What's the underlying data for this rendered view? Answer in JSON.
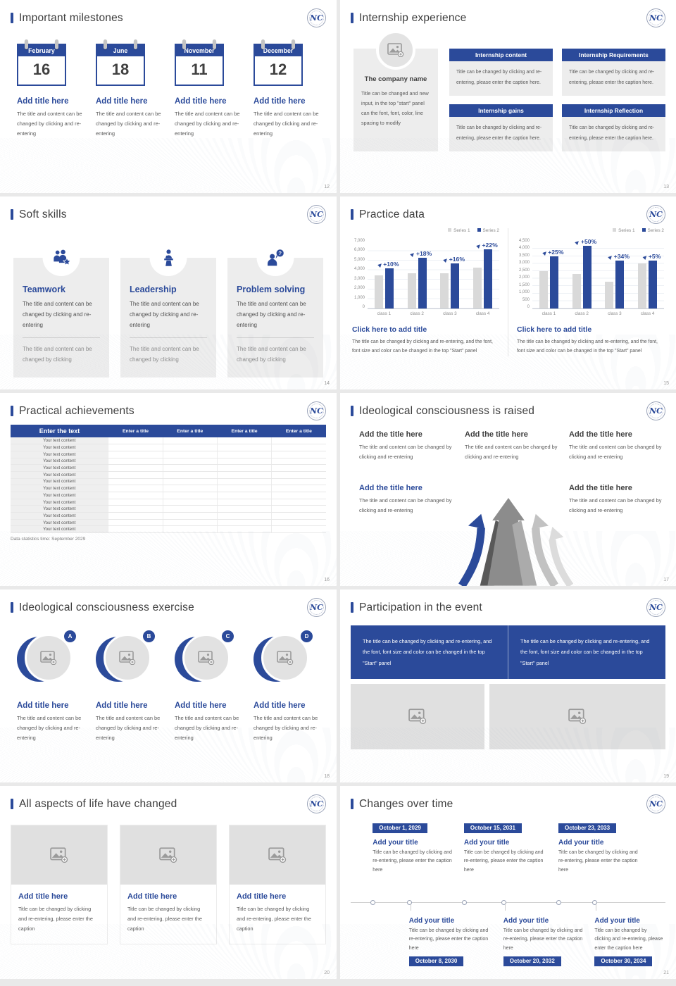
{
  "logo": {
    "monogram": "NC"
  },
  "glyphs": {
    "question_mark": "?"
  },
  "colors": {
    "primary": "#2b4a9a",
    "series1_gray": "#d9d9d9",
    "panel_gray": "#ededed"
  },
  "slides": [
    {
      "title": "Important milestones",
      "page": "12",
      "items": [
        {
          "month": "February",
          "day": "16",
          "title": "Add title here",
          "caption": "The title and content can be changed by clicking and re-entering"
        },
        {
          "month": "June",
          "day": "18",
          "title": "Add title here",
          "caption": "The title and content can be changed by clicking and re-entering"
        },
        {
          "month": "November",
          "day": "11",
          "title": "Add title here",
          "caption": "The title and content can be changed by clicking and re-entering"
        },
        {
          "month": "December",
          "day": "12",
          "title": "Add title here",
          "caption": "The title and content can be changed by clicking and re-entering"
        }
      ]
    },
    {
      "title": "Internship experience",
      "page": "13",
      "company": {
        "name": "The company name",
        "caption": "Title can be changed and new input, in the top \"start\" panel can the font, font, color, line spacing to modify"
      },
      "panels": [
        {
          "title": "Internship content",
          "caption": "Title can be changed by clicking and re-entering, please enter the caption here."
        },
        {
          "title": "Internship Requirements",
          "caption": "Title can be changed by clicking and re-entering, please enter the caption here."
        },
        {
          "title": "Internship gains",
          "caption": "Title can be changed by clicking and re-entering, please enter the caption here."
        },
        {
          "title": "Internship Reflection",
          "caption": "Title can be changed by clicking and re-entering, please enter the caption here."
        }
      ]
    },
    {
      "title": "Soft skills",
      "page": "14",
      "cards": [
        {
          "icon": "teamwork-icon",
          "title": "Teamwork",
          "text1": "The title and content can be changed by clicking and re-entering",
          "text2": "The title and content can be changed by clicking"
        },
        {
          "icon": "leadership-icon",
          "title": "Leadership",
          "text1": "The title and content can be changed by clicking and re-entering",
          "text2": "The title and content can be changed by clicking"
        },
        {
          "icon": "problem-solving-icon",
          "title": "Problem solving",
          "text1": "The title and content can be changed by clicking and re-entering",
          "text2": "The title and content can be changed by clicking"
        }
      ]
    },
    {
      "title": "Practice data",
      "page": "15",
      "chart_data": [
        {
          "type": "bar",
          "legend": [
            "Series 1",
            "Series 2"
          ],
          "categories": [
            "class 1",
            "class 2",
            "class 3",
            "class 4"
          ],
          "series": [
            {
              "name": "Series 1",
              "values": [
                3500,
                3700,
                3650,
                4300
              ]
            },
            {
              "name": "Series 2",
              "values": [
                4200,
                5300,
                4750,
                6200
              ]
            }
          ],
          "growth_labels": [
            "+10%",
            "+18%",
            "+16%",
            "+22%"
          ],
          "ylim": [
            0,
            7000
          ],
          "yticks": [
            "7,000",
            "6,000",
            "5,000",
            "4,000",
            "3,000",
            "2,000",
            "1,000",
            "0"
          ],
          "link": "Click here to add title",
          "caption": "The title can be changed by clicking and re-entering, and the font, font size and color can be changed in the top \"Start\" panel"
        },
        {
          "type": "bar",
          "legend": [
            "Series 1",
            "Series 2"
          ],
          "categories": [
            "class 1",
            "class 2",
            "class 3",
            "class 4"
          ],
          "series": [
            {
              "name": "Series 1",
              "values": [
                2500,
                2300,
                1800,
                3050
              ]
            },
            {
              "name": "Series 2",
              "values": [
                3500,
                4200,
                3200,
                3200
              ]
            }
          ],
          "growth_labels": [
            "+25%",
            "+50%",
            "+34%",
            "+5%"
          ],
          "ylim": [
            0,
            4500
          ],
          "yticks": [
            "4,500",
            "4,000",
            "3,500",
            "3,000",
            "2,500",
            "2,000",
            "1,500",
            "1,000",
            "500",
            "0"
          ],
          "link": "Click here to add title",
          "caption": "The title can be changed by clicking and re-entering, and the font, font size and color can be changed in the top \"Start\" panel"
        }
      ]
    },
    {
      "title": "Practical achievements",
      "page": "16",
      "table": {
        "headers": [
          "Enter the text",
          "Enter a title",
          "Enter a title",
          "Enter a title",
          "Enter a title"
        ],
        "row_label": "Your text content",
        "row_count": 14,
        "footnote": "Data statistics time: September 2029"
      }
    },
    {
      "title": "Ideological consciousness is raised",
      "page": "17",
      "blocks": [
        {
          "title": "Add the title here",
          "caption": "The title and content can be changed by clicking and re-entering"
        },
        {
          "title": "Add the title here",
          "caption": "The title and content can be changed by clicking and re-entering"
        },
        {
          "title": "Add the title here",
          "caption": "The title and content can be changed by clicking and re-entering"
        },
        {
          "title": "Add the title here",
          "caption": "The title and content can be changed by clicking and re-entering"
        },
        {
          "title": "Add the title here",
          "caption": "The title and content can be changed by clicking and re-entering"
        }
      ]
    },
    {
      "title": "Ideological consciousness exercise",
      "page": "18",
      "items": [
        {
          "letter": "A",
          "title": "Add title here",
          "caption": "The title and content can be changed by clicking and re-entering"
        },
        {
          "letter": "B",
          "title": "Add title here",
          "caption": "The title and content can be changed by clicking and re-entering"
        },
        {
          "letter": "C",
          "title": "Add title here",
          "caption": "The title and content can be changed by clicking and re-entering"
        },
        {
          "letter": "D",
          "title": "Add title here",
          "caption": "The title and content can be changed by clicking and re-entering"
        }
      ]
    },
    {
      "title": "Participation in the event",
      "page": "19",
      "banner": [
        "The title can be changed by clicking and re-entering, and the font, font size and color can be changed in the top \"Start\" panel",
        "The title can be changed by clicking and re-entering, and the font, font size and color can be changed in the top \"Start\" panel"
      ]
    },
    {
      "title": "All aspects of life have changed",
      "page": "20",
      "cards": [
        {
          "title": "Add title here",
          "caption": "Title can be changed by clicking and re-entering, please enter the caption"
        },
        {
          "title": "Add title here",
          "caption": "Title can be changed by clicking and re-entering, please enter the caption"
        },
        {
          "title": "Add title here",
          "caption": "Title can be changed by clicking and re-entering, please enter the caption"
        }
      ]
    },
    {
      "title": "Changes over time",
      "page": "21",
      "top": [
        {
          "date": "October 1, 2029",
          "title": "Add your title",
          "caption": "Title can be changed by clicking and re-entering, please enter the caption here"
        },
        {
          "date": "October 15, 2031",
          "title": "Add your title",
          "caption": "Title can be changed by clicking and re-entering, please enter the caption here"
        },
        {
          "date": "October 23, 2033",
          "title": "Add your title",
          "caption": "Title can be changed by clicking and re-entering, please enter the caption here"
        }
      ],
      "bottom": [
        {
          "date": "October 8, 2030",
          "title": "Add your title",
          "caption": "Title can be changed by clicking and re-entering, please enter the caption here"
        },
        {
          "date": "October 20, 2032",
          "title": "Add your title",
          "caption": "Title can be changed by clicking and re-entering, please enter the caption here"
        },
        {
          "date": "October 30, 2034",
          "title": "Add your title",
          "caption": "Title can be changed by clicking and re-entering, please enter the caption here"
        }
      ]
    }
  ]
}
